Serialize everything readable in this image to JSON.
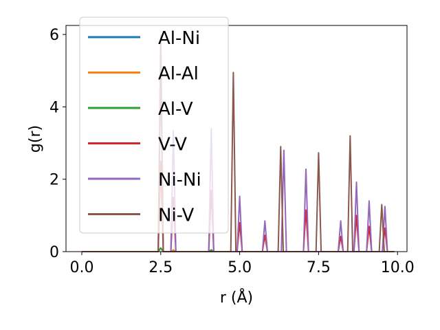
{
  "chart_data": {
    "type": "line",
    "title": "",
    "xlabel": "r (Å)",
    "ylabel": "g(r)",
    "xlim": [
      -0.5,
      10.3
    ],
    "ylim": [
      0,
      6.25
    ],
    "xticks": [
      0.0,
      2.5,
      5.0,
      7.5,
      10.0
    ],
    "xtick_labels": [
      "0.0",
      "2.5",
      "5.0",
      "7.5",
      "10.0"
    ],
    "yticks": [
      0,
      2,
      4,
      6
    ],
    "ytick_labels": [
      "0",
      "2",
      "4",
      "6"
    ],
    "grid": false,
    "legend_position": "upper-left",
    "x_range": [
      0.0,
      9.9
    ],
    "series": [
      {
        "name": "Al-Ni",
        "color": "#1f77b4",
        "peaks": [
          [
            2.5,
            0.1
          ],
          [
            4.1,
            0.05
          ]
        ]
      },
      {
        "name": "Al-Al",
        "color": "#ff7f0e",
        "peaks": [
          [
            2.5,
            0.1
          ],
          [
            2.9,
            0.05
          ]
        ]
      },
      {
        "name": "Al-V",
        "color": "#2ca02c",
        "peaks": [
          [
            2.5,
            0.1
          ],
          [
            4.1,
            0.05
          ]
        ]
      },
      {
        "name": "V-V",
        "color": "#d62728",
        "peaks": [
          [
            2.5,
            2.5
          ],
          [
            2.9,
            1.5
          ],
          [
            4.1,
            1.7
          ],
          [
            5.0,
            0.8
          ],
          [
            5.8,
            0.45
          ],
          [
            7.1,
            1.15
          ],
          [
            8.2,
            0.42
          ],
          [
            8.7,
            1.0
          ],
          [
            9.1,
            0.7
          ],
          [
            9.6,
            0.65
          ]
        ]
      },
      {
        "name": "Ni-Ni",
        "color": "#9467bd",
        "peaks": [
          [
            2.5,
            5.0
          ],
          [
            2.9,
            3.35
          ],
          [
            4.1,
            3.4
          ],
          [
            5.0,
            1.53
          ],
          [
            5.8,
            0.85
          ],
          [
            6.4,
            2.8
          ],
          [
            7.1,
            2.28
          ],
          [
            8.2,
            0.85
          ],
          [
            8.7,
            1.92
          ],
          [
            9.1,
            1.4
          ],
          [
            9.6,
            1.25
          ]
        ]
      },
      {
        "name": "Ni-V",
        "color": "#8c564b",
        "peaks": [
          [
            2.5,
            5.98
          ],
          [
            4.8,
            4.95
          ],
          [
            6.3,
            2.9
          ],
          [
            7.5,
            2.73
          ],
          [
            8.5,
            3.2
          ],
          [
            9.5,
            1.3
          ]
        ]
      }
    ]
  }
}
